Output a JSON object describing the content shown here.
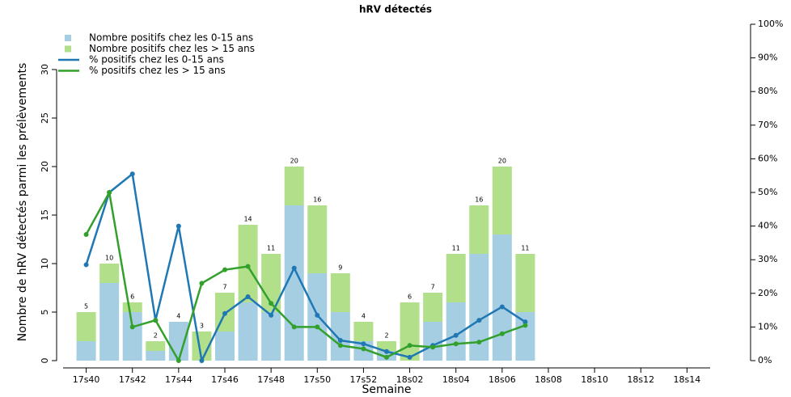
{
  "chart_data": {
    "type": "bar",
    "stacked": true,
    "title": "hRV détectés",
    "xlabel": "Semaine",
    "ylabel": "Nombre de hRV détectés parmi les prélèvements",
    "categories": [
      "17s40",
      null,
      "17s42",
      null,
      "17s44",
      null,
      "17s46",
      null,
      "17s48",
      null,
      "17s50",
      null,
      "17s52",
      null,
      "18s02",
      null,
      "18s04",
      null,
      "18s06",
      null,
      "18s08",
      null,
      "18s10",
      null,
      "18s12",
      null,
      "18s14",
      null
    ],
    "ylim": [
      0,
      30
    ],
    "yticks": [
      0,
      5,
      10,
      15,
      20,
      25,
      30
    ],
    "y2lim": [
      0,
      100
    ],
    "y2ticks": [
      {
        "value": 0,
        "label": "0%"
      },
      {
        "value": 10,
        "label": "10%"
      },
      {
        "value": 20,
        "label": "20%"
      },
      {
        "value": 30,
        "label": "30%"
      },
      {
        "value": 40,
        "label": "40%"
      },
      {
        "value": 50,
        "label": "50%"
      },
      {
        "value": 60,
        "label": "60%"
      },
      {
        "value": 70,
        "label": "70%"
      },
      {
        "value": 80,
        "label": "80%"
      },
      {
        "value": 90,
        "label": "90%"
      },
      {
        "value": 100,
        "label": "100%"
      }
    ],
    "totals": [
      5,
      10,
      6,
      2,
      4,
      3,
      7,
      14,
      11,
      20,
      16,
      9,
      4,
      2,
      6,
      7,
      11,
      16,
      20,
      11,
      null,
      null,
      null,
      null,
      null,
      null,
      null,
      null
    ],
    "legend": "upper left",
    "series": [
      {
        "name": "Nombre positifs chez les 0-15 ans",
        "type": "bar",
        "color": "#a6cee3",
        "values": [
          2,
          8,
          5,
          1,
          4,
          0,
          3,
          6,
          5,
          16,
          9,
          5,
          2,
          1,
          0,
          4,
          6,
          11,
          13,
          5,
          null,
          null,
          null,
          null,
          null,
          null,
          null,
          null
        ]
      },
      {
        "name": "Nombre positifs chez les > 15 ans",
        "type": "bar",
        "color": "#b2df8a",
        "values": [
          3,
          2,
          1,
          1,
          0,
          3,
          4,
          8,
          6,
          4,
          7,
          4,
          2,
          1,
          6,
          3,
          5,
          5,
          7,
          6,
          null,
          null,
          null,
          null,
          null,
          null,
          null,
          null
        ]
      },
      {
        "name": "% positifs chez les 0-15 ans",
        "type": "line",
        "axis": "y2",
        "color": "#1f78b4",
        "values": [
          28.5,
          50,
          55.5,
          12,
          40,
          0,
          14,
          19,
          13.5,
          27.5,
          13.5,
          6,
          5,
          2.7,
          1,
          4.5,
          7.5,
          12,
          16,
          11.5,
          null,
          null,
          null,
          null,
          null,
          null,
          null,
          null
        ]
      },
      {
        "name": "% positifs chez les > 15 ans",
        "type": "line",
        "axis": "y2",
        "color": "#33a02c",
        "values": [
          37.5,
          50,
          10,
          12,
          0,
          23,
          27,
          28,
          17,
          10,
          10,
          4.5,
          3.5,
          1,
          4.5,
          4,
          5,
          5.5,
          8,
          10.5,
          null,
          null,
          null,
          null,
          null,
          null,
          null,
          null
        ]
      }
    ]
  }
}
